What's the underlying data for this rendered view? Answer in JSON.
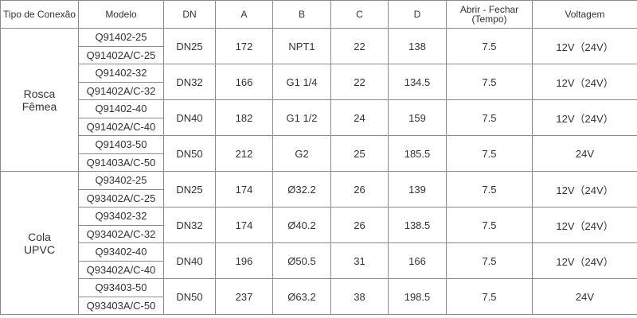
{
  "table": {
    "header": [
      "Tipo de Conexão",
      "Modelo",
      "DN",
      "A",
      "B",
      "C",
      "D",
      "Abrir - Fechar (Tempo)",
      "Voltagem"
    ],
    "groups": [
      {
        "type": "Rosca Fêmea",
        "rows": [
          {
            "models": [
              "Q91402-25",
              "Q91402A/C-25"
            ],
            "dn": "DN25",
            "a": 172,
            "b": "NPT1",
            "c": 22,
            "d": 138,
            "time": 7.5,
            "voltage": "12V（24V）"
          },
          {
            "models": [
              "Q91402-32",
              "Q91402A/C-32"
            ],
            "dn": "DN32",
            "a": 166,
            "b": "G1 1/4",
            "c": 22,
            "d": 134.5,
            "time": 7.5,
            "voltage": "12V（24V）"
          },
          {
            "models": [
              "Q91402-40",
              "Q91402A/C-40"
            ],
            "dn": "DN40",
            "a": 182,
            "b": "G1 1/2",
            "c": 24,
            "d": 159,
            "time": 7.5,
            "voltage": "12V（24V）"
          },
          {
            "models": [
              "Q91403-50",
              "Q91403A/C-50"
            ],
            "dn": "DN50",
            "a": 212,
            "b": "G2",
            "c": 25,
            "d": 185.5,
            "time": 7.5,
            "voltage": "24V"
          }
        ]
      },
      {
        "type": "Cola UPVC",
        "rows": [
          {
            "models": [
              "Q93402-25",
              "Q93402A/C-25"
            ],
            "dn": "DN25",
            "a": 174,
            "b": "Ø32.2",
            "c": 26,
            "d": 139,
            "time": 7.5,
            "voltage": "12V（24V）"
          },
          {
            "models": [
              "Q93402-32",
              "Q93402A/C-32"
            ],
            "dn": "DN32",
            "a": 174,
            "b": "Ø40.2",
            "c": 26,
            "d": 138.5,
            "time": 7.5,
            "voltage": "12V（24V）"
          },
          {
            "models": [
              "Q93402-40",
              "Q93402A/C-40"
            ],
            "dn": "DN40",
            "a": 196,
            "b": "Ø50.5",
            "c": 31,
            "d": 166,
            "time": 7.5,
            "voltage": "12V（24V）"
          },
          {
            "models": [
              "Q93403-50",
              "Q93403A/C-50"
            ],
            "dn": "DN50",
            "a": 237,
            "b": "Ø63.2",
            "c": 38,
            "d": 198.5,
            "time": 7.5,
            "voltage": "24V"
          }
        ]
      }
    ]
  }
}
